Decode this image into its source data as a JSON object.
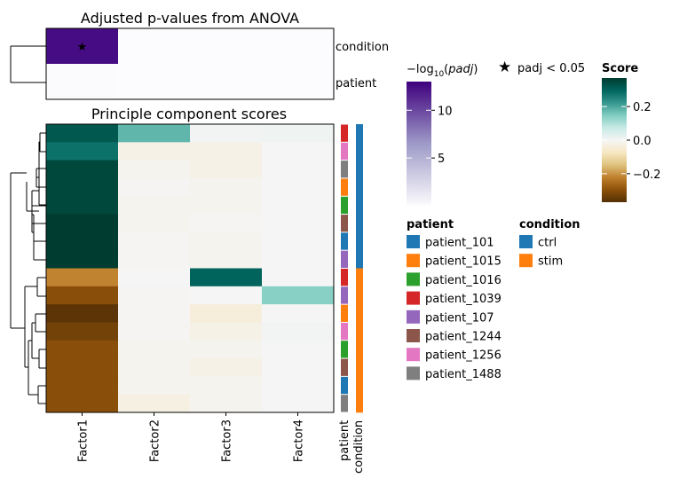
{
  "chart_data": [
    {
      "type": "heatmap",
      "title": "Adjusted p-values from ANOVA",
      "rows": [
        "condition",
        "patient"
      ],
      "columns": [
        "Factor1",
        "Factor2",
        "Factor3",
        "Factor4"
      ],
      "neg_log10_padj": [
        [
          12.5,
          0.02,
          0.02,
          0.02
        ],
        [
          0.05,
          0.02,
          0.02,
          0.02
        ]
      ],
      "significant": [
        [
          true,
          false,
          false,
          false
        ],
        [
          false,
          false,
          false,
          false
        ]
      ],
      "colorbar": {
        "label_prefix": "−log",
        "label_sub": "10",
        "label_mid": "(",
        "label_italic": "padj",
        "label_suffix": ")",
        "ticks": [
          5,
          10
        ],
        "range": [
          0,
          13
        ],
        "colors": [
          "#fcfbfd",
          "#9e9ac8",
          "#3f007d"
        ]
      },
      "significance_legend": {
        "marker": "★",
        "label": "padj < 0.05",
        "color": "#ff0000"
      }
    },
    {
      "type": "heatmap",
      "title": "Principle component scores",
      "columns": [
        "Factor1",
        "Factor2",
        "Factor3",
        "Factor4"
      ],
      "row_patient": [
        "patient_1039",
        "patient_1256",
        "patient_1488",
        "patient_1015",
        "patient_1016",
        "patient_1244",
        "patient_101",
        "patient_107",
        "patient_1039",
        "patient_107",
        "patient_1015",
        "patient_1256",
        "patient_1016",
        "patient_1244",
        "patient_101",
        "patient_1488"
      ],
      "row_condition": [
        "ctrl",
        "ctrl",
        "ctrl",
        "ctrl",
        "ctrl",
        "ctrl",
        "ctrl",
        "ctrl",
        "stim",
        "stim",
        "stim",
        "stim",
        "stim",
        "stim",
        "stim",
        "stim"
      ],
      "values": [
        [
          0.32,
          0.18,
          0.005,
          0.01
        ],
        [
          0.28,
          -0.02,
          -0.02,
          0.0
        ],
        [
          0.35,
          -0.01,
          -0.02,
          0.0
        ],
        [
          0.35,
          -0.005,
          -0.01,
          0.0
        ],
        [
          0.35,
          -0.01,
          -0.01,
          0.0
        ],
        [
          0.38,
          -0.01,
          -0.005,
          0.0
        ],
        [
          0.42,
          -0.005,
          -0.01,
          0.0
        ],
        [
          0.38,
          -0.005,
          -0.01,
          0.0
        ],
        [
          -0.22,
          0.0,
          0.3,
          0.0
        ],
        [
          -0.3,
          -0.005,
          0.0,
          0.14
        ],
        [
          -0.36,
          -0.005,
          -0.04,
          0.0
        ],
        [
          -0.33,
          -0.005,
          -0.02,
          0.005
        ],
        [
          -0.3,
          -0.01,
          -0.01,
          0.0
        ],
        [
          -0.3,
          -0.01,
          -0.02,
          0.0
        ],
        [
          -0.3,
          -0.01,
          -0.01,
          0.0
        ],
        [
          -0.3,
          -0.03,
          -0.01,
          0.0
        ]
      ],
      "track_labels": [
        "patient",
        "condition"
      ],
      "colorbar": {
        "title": "Score",
        "ticks": [
          0.2,
          0.0,
          -0.2
        ],
        "range": [
          -0.37,
          0.37
        ],
        "colors": [
          "#543005",
          "#8c510a",
          "#bf812d",
          "#dfc27d",
          "#f6e8c3",
          "#f5f5f5",
          "#c7eae5",
          "#80cdc1",
          "#35978f",
          "#01665e",
          "#003c30"
        ]
      }
    }
  ],
  "legends": {
    "patient": {
      "title": "patient",
      "items": [
        {
          "label": "patient_101",
          "color": "#1f77b4"
        },
        {
          "label": "patient_1015",
          "color": "#ff7f0e"
        },
        {
          "label": "patient_1016",
          "color": "#2ca02c"
        },
        {
          "label": "patient_1039",
          "color": "#d62728"
        },
        {
          "label": "patient_107",
          "color": "#9467bd"
        },
        {
          "label": "patient_1244",
          "color": "#8c564b"
        },
        {
          "label": "patient_1256",
          "color": "#e377c2"
        },
        {
          "label": "patient_1488",
          "color": "#7f7f7f"
        }
      ]
    },
    "condition": {
      "title": "condition",
      "items": [
        {
          "label": "ctrl",
          "color": "#1f77b4"
        },
        {
          "label": "stim",
          "color": "#ff7f0e"
        }
      ]
    }
  }
}
